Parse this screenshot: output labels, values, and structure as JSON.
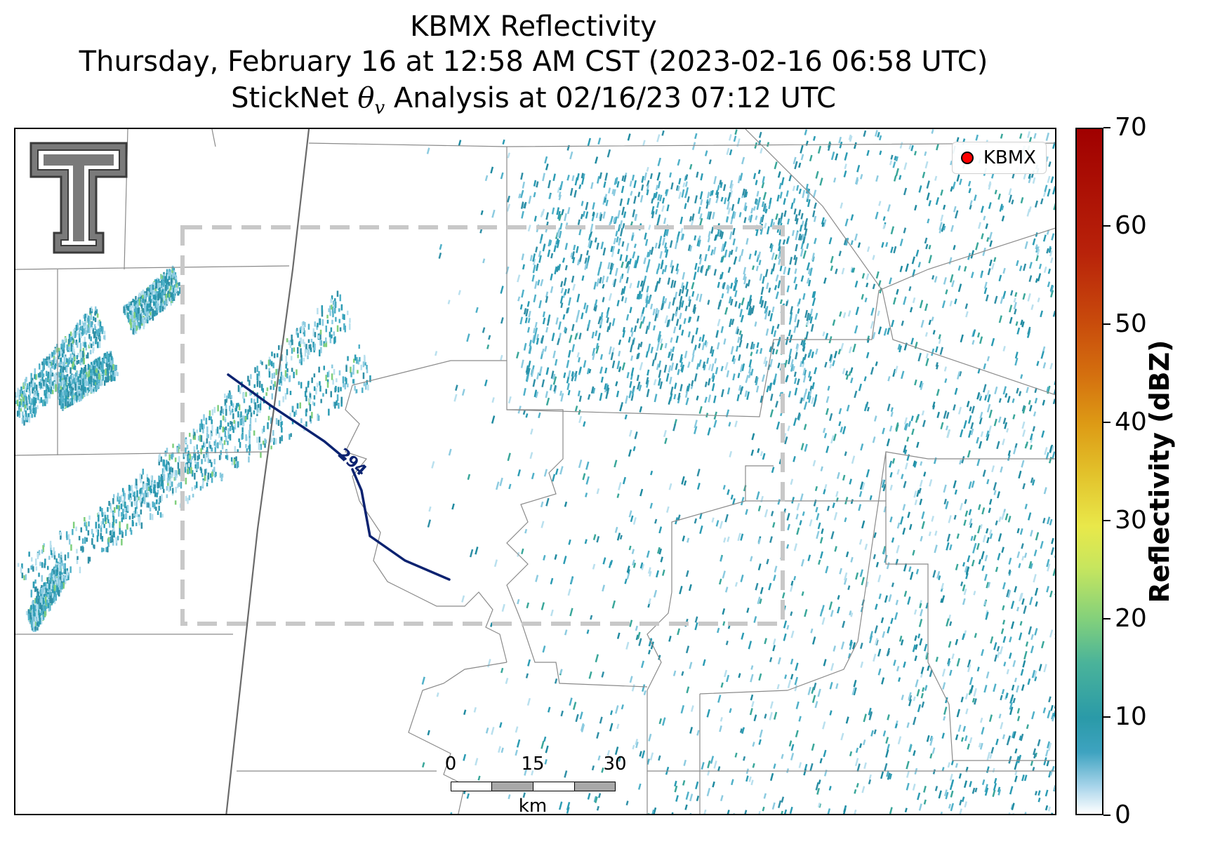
{
  "header": {
    "title_line1": "KBMX Reflectivity",
    "title_line2": "Thursday, February 16 at 12:58 AM CST (2023-02-16 06:58 UTC)",
    "title_line3_prefix": "StickNet",
    "title_line3_symbol": "θ",
    "title_line3_subscript": "v",
    "title_line3_suffix": "Analysis at 02/16/23 07:12 UTC"
  },
  "map": {
    "legend_label": "KBMX",
    "legend_marker_color": "#ff0000",
    "contour_label": "294",
    "contour_color": "#0b2270",
    "analysis_box_color": "#c8c8c8",
    "logo": "texas-tech-double-t-logo"
  },
  "scalebar": {
    "labels": [
      "0",
      "15",
      "30"
    ],
    "unit": "km"
  },
  "colorbar": {
    "title": "Reflectivity (dBZ)",
    "ticks": [
      "0",
      "10",
      "20",
      "30",
      "40",
      "50",
      "60",
      "70"
    ],
    "range": [
      0,
      70
    ]
  }
}
